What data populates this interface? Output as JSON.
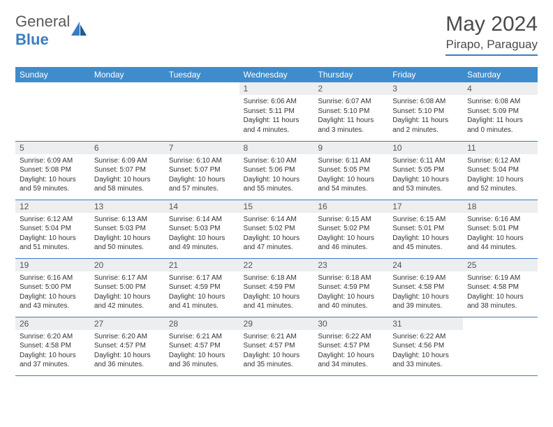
{
  "logo": {
    "line1": "General",
    "line2": "Blue"
  },
  "header": {
    "title": "May 2024",
    "location": "Pirapo, Paraguay"
  },
  "colors": {
    "accent": "#3f8ccc",
    "divider": "#3a7cc0",
    "daynum_bg": "#eceeef",
    "text": "#333333",
    "background": "#ffffff"
  },
  "weekdays": [
    "Sunday",
    "Monday",
    "Tuesday",
    "Wednesday",
    "Thursday",
    "Friday",
    "Saturday"
  ],
  "weeks": [
    [
      {
        "n": "",
        "t": ""
      },
      {
        "n": "",
        "t": ""
      },
      {
        "n": "",
        "t": ""
      },
      {
        "n": "1",
        "t": "Sunrise: 6:06 AM\nSunset: 5:11 PM\nDaylight: 11 hours and 4 minutes."
      },
      {
        "n": "2",
        "t": "Sunrise: 6:07 AM\nSunset: 5:10 PM\nDaylight: 11 hours and 3 minutes."
      },
      {
        "n": "3",
        "t": "Sunrise: 6:08 AM\nSunset: 5:10 PM\nDaylight: 11 hours and 2 minutes."
      },
      {
        "n": "4",
        "t": "Sunrise: 6:08 AM\nSunset: 5:09 PM\nDaylight: 11 hours and 0 minutes."
      }
    ],
    [
      {
        "n": "5",
        "t": "Sunrise: 6:09 AM\nSunset: 5:08 PM\nDaylight: 10 hours and 59 minutes."
      },
      {
        "n": "6",
        "t": "Sunrise: 6:09 AM\nSunset: 5:07 PM\nDaylight: 10 hours and 58 minutes."
      },
      {
        "n": "7",
        "t": "Sunrise: 6:10 AM\nSunset: 5:07 PM\nDaylight: 10 hours and 57 minutes."
      },
      {
        "n": "8",
        "t": "Sunrise: 6:10 AM\nSunset: 5:06 PM\nDaylight: 10 hours and 55 minutes."
      },
      {
        "n": "9",
        "t": "Sunrise: 6:11 AM\nSunset: 5:05 PM\nDaylight: 10 hours and 54 minutes."
      },
      {
        "n": "10",
        "t": "Sunrise: 6:11 AM\nSunset: 5:05 PM\nDaylight: 10 hours and 53 minutes."
      },
      {
        "n": "11",
        "t": "Sunrise: 6:12 AM\nSunset: 5:04 PM\nDaylight: 10 hours and 52 minutes."
      }
    ],
    [
      {
        "n": "12",
        "t": "Sunrise: 6:12 AM\nSunset: 5:04 PM\nDaylight: 10 hours and 51 minutes."
      },
      {
        "n": "13",
        "t": "Sunrise: 6:13 AM\nSunset: 5:03 PM\nDaylight: 10 hours and 50 minutes."
      },
      {
        "n": "14",
        "t": "Sunrise: 6:14 AM\nSunset: 5:03 PM\nDaylight: 10 hours and 49 minutes."
      },
      {
        "n": "15",
        "t": "Sunrise: 6:14 AM\nSunset: 5:02 PM\nDaylight: 10 hours and 47 minutes."
      },
      {
        "n": "16",
        "t": "Sunrise: 6:15 AM\nSunset: 5:02 PM\nDaylight: 10 hours and 46 minutes."
      },
      {
        "n": "17",
        "t": "Sunrise: 6:15 AM\nSunset: 5:01 PM\nDaylight: 10 hours and 45 minutes."
      },
      {
        "n": "18",
        "t": "Sunrise: 6:16 AM\nSunset: 5:01 PM\nDaylight: 10 hours and 44 minutes."
      }
    ],
    [
      {
        "n": "19",
        "t": "Sunrise: 6:16 AM\nSunset: 5:00 PM\nDaylight: 10 hours and 43 minutes."
      },
      {
        "n": "20",
        "t": "Sunrise: 6:17 AM\nSunset: 5:00 PM\nDaylight: 10 hours and 42 minutes."
      },
      {
        "n": "21",
        "t": "Sunrise: 6:17 AM\nSunset: 4:59 PM\nDaylight: 10 hours and 41 minutes."
      },
      {
        "n": "22",
        "t": "Sunrise: 6:18 AM\nSunset: 4:59 PM\nDaylight: 10 hours and 41 minutes."
      },
      {
        "n": "23",
        "t": "Sunrise: 6:18 AM\nSunset: 4:59 PM\nDaylight: 10 hours and 40 minutes."
      },
      {
        "n": "24",
        "t": "Sunrise: 6:19 AM\nSunset: 4:58 PM\nDaylight: 10 hours and 39 minutes."
      },
      {
        "n": "25",
        "t": "Sunrise: 6:19 AM\nSunset: 4:58 PM\nDaylight: 10 hours and 38 minutes."
      }
    ],
    [
      {
        "n": "26",
        "t": "Sunrise: 6:20 AM\nSunset: 4:58 PM\nDaylight: 10 hours and 37 minutes."
      },
      {
        "n": "27",
        "t": "Sunrise: 6:20 AM\nSunset: 4:57 PM\nDaylight: 10 hours and 36 minutes."
      },
      {
        "n": "28",
        "t": "Sunrise: 6:21 AM\nSunset: 4:57 PM\nDaylight: 10 hours and 36 minutes."
      },
      {
        "n": "29",
        "t": "Sunrise: 6:21 AM\nSunset: 4:57 PM\nDaylight: 10 hours and 35 minutes."
      },
      {
        "n": "30",
        "t": "Sunrise: 6:22 AM\nSunset: 4:57 PM\nDaylight: 10 hours and 34 minutes."
      },
      {
        "n": "31",
        "t": "Sunrise: 6:22 AM\nSunset: 4:56 PM\nDaylight: 10 hours and 33 minutes."
      },
      {
        "n": "",
        "t": ""
      }
    ]
  ]
}
